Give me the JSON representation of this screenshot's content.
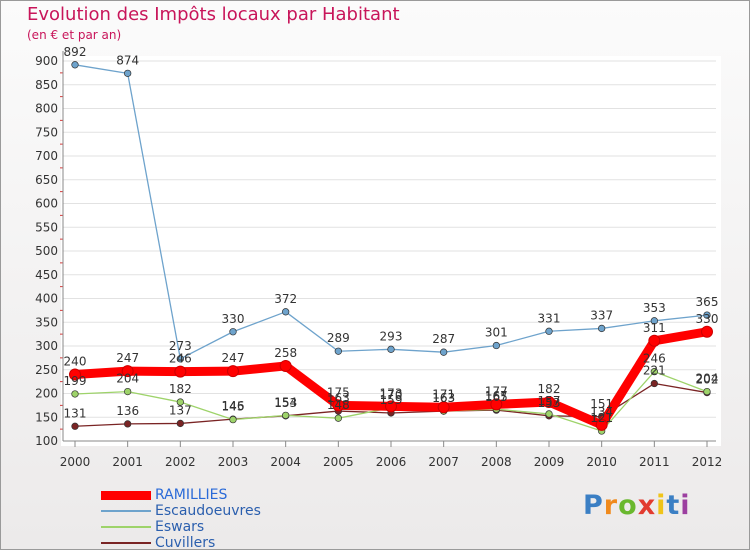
{
  "title": "Evolution des Impôts locaux par Habitant",
  "subtitle": "(en € et par an)",
  "brand": {
    "letters": [
      "P",
      "r",
      "o",
      "x",
      "i",
      "t",
      "i"
    ],
    "colors": [
      "#3b7fc4",
      "#f08a1c",
      "#6ab82e",
      "#e23b2f",
      "#f0c419",
      "#3b7fc4",
      "#9c3fa0"
    ]
  },
  "chart_data": {
    "type": "line",
    "title": "Evolution des Impôts locaux par Habitant",
    "ylabel": "(en € et par an)",
    "ylim": [
      100,
      900
    ],
    "yticks": [
      "100",
      "150",
      "200",
      "250",
      "300",
      "350",
      "400",
      "450",
      "500",
      "550",
      "600",
      "650",
      "700",
      "750",
      "800",
      "850",
      "900"
    ],
    "x": [
      "2000",
      "2001",
      "2002",
      "2003",
      "2004",
      "2005",
      "2006",
      "2007",
      "2008",
      "2009",
      "2010",
      "2011",
      "2012"
    ],
    "legend_position": "bottom-left",
    "series": [
      {
        "name": "RAMILLIES",
        "color": "#ff0000",
        "labels": [
          "240",
          "247",
          "246",
          "247",
          "258",
          "175",
          "173",
          "171",
          "177",
          "182",
          "134",
          "311",
          "330"
        ]
      },
      {
        "name": "Escaudoeuvres",
        "color": "#6ea3cc",
        "labels": [
          "892",
          "874",
          "273",
          "330",
          "372",
          "289",
          "293",
          "287",
          "301",
          "331",
          "337",
          "353",
          "365"
        ]
      },
      {
        "name": "Eswars",
        "color": "#9ed36a",
        "labels": [
          "199",
          "204",
          "182",
          "145",
          "154",
          "148",
          "170",
          "163",
          "167",
          "157",
          "121",
          "246",
          "204"
        ]
      },
      {
        "name": "Cuvillers",
        "color": "#7a2424",
        "labels": [
          "131",
          "136",
          "137",
          "146",
          "153",
          "163",
          "159",
          "163",
          "165",
          "153",
          "151",
          "221",
          "202"
        ]
      }
    ]
  }
}
